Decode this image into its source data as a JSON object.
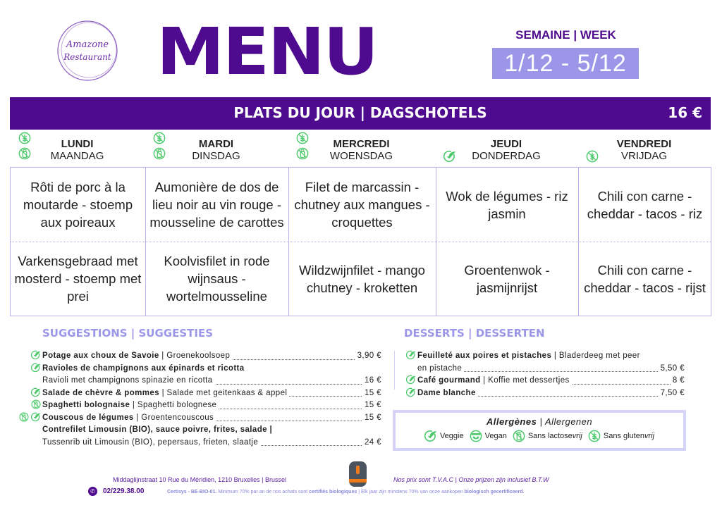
{
  "logo": {
    "text": "Amazone Restaurant"
  },
  "title": "MENU",
  "week": {
    "label": "SEMAINE | WEEK",
    "range": "1/12  -  5/12"
  },
  "plats": {
    "title": "PLATS DU JOUR | DAGSCHOTELS",
    "price": "16 €"
  },
  "colors": {
    "primary": "#4f0b8f",
    "accent": "#9b96e8",
    "icon_green": "#4cc96a"
  },
  "days": [
    {
      "fr": "LUNDI",
      "nl": "MAANDAG",
      "icons": [
        "gluten-free-icon",
        "lactose-free-icon"
      ],
      "dish_fr": "Rôti de porc à la moutarde - stoemp aux poireaux",
      "dish_nl": "Varkensgebraad met mosterd - stoemp met prei"
    },
    {
      "fr": "MARDI",
      "nl": "DINSDAG",
      "icons": [
        "gluten-free-icon",
        "lactose-free-icon"
      ],
      "dish_fr": "Aumonière de dos de lieu noir au vin rouge - mousseline de carottes",
      "dish_nl": "Koolvisfilet in rode wijnsaus - wortelmousseline"
    },
    {
      "fr": "MERCREDI",
      "nl": "WOENSDAG",
      "icons": [
        "gluten-free-icon",
        "lactose-free-icon"
      ],
      "dish_fr": "Filet de marcassin - chutney aux mangues - croquettes",
      "dish_nl": "Wildzwijnfilet - mango chutney - kroketten"
    },
    {
      "fr": "JEUDI",
      "nl": "DONDERDAG",
      "icons": [
        "veggie-icon"
      ],
      "dish_fr": "Wok de légumes - riz jasmin",
      "dish_nl": "Groentenwok - jasmijnrijst"
    },
    {
      "fr": "VENDREDI",
      "nl": "VRIJDAG",
      "icons": [
        "gluten-free-icon"
      ],
      "dish_fr": "Chili con carne - cheddar - tacos - riz",
      "dish_nl": "Chili con carne - cheddar - tacos - rijst"
    }
  ],
  "suggestions": {
    "title": "SUGGESTIONS | SUGGESTIES",
    "rows": [
      {
        "icons": [
          "veggie-icon"
        ],
        "bold": "Potage aux choux de Savoie",
        "text": " | Groenekoolsoep",
        "price": "3,90 €"
      },
      {
        "icons": [
          "veggie-icon"
        ],
        "bold": "Ravioles de champignons aux épinards et ricotta",
        "text": "",
        "price": ""
      },
      {
        "icons": [],
        "bold": "",
        "text": "Ravioli met champignons spinazie en ricotta",
        "price": "16 €"
      },
      {
        "icons": [
          "veggie-icon"
        ],
        "bold": "Salade de chèvre & pommes",
        "text": " | Salade met geitenkaas & appel",
        "price": "15 €"
      },
      {
        "icons": [
          "lactose-free-icon"
        ],
        "bold": "Spaghetti bolognaise",
        "text": " | Spaghetti bolognese",
        "price": "15 €"
      },
      {
        "icons": [
          "lactose-free-icon",
          "veggie-icon"
        ],
        "bold": "Couscous de légumes",
        "text": " | Groentencouscous",
        "price": "15 €"
      },
      {
        "icons": [],
        "bold": "Contrefilet Limousin (BIO), sauce poivre, frites, salade |",
        "text": "",
        "price": ""
      },
      {
        "icons": [],
        "bold": "",
        "text": "Tussenrib uit Limousin (BIO), pepersaus, frieten, slaatje",
        "price": "24 €"
      }
    ]
  },
  "desserts": {
    "title": "DESSERTS | DESSERTEN",
    "rows": [
      {
        "icons": [
          "veggie-icon"
        ],
        "bold": "Feuilleté aux poires et pistaches",
        "text": " | Bladerdeeg met peer",
        "price": ""
      },
      {
        "icons": [],
        "bold": "",
        "text": "en pistache",
        "price": "5,50 €"
      },
      {
        "icons": [
          "veggie-icon"
        ],
        "bold": "Café gourmand",
        "text": " | Koffie met dessertjes",
        "price": "8 €"
      },
      {
        "icons": [
          "veggie-icon"
        ],
        "bold": "Dame blanche",
        "text": "",
        "price": "7,50 €"
      }
    ]
  },
  "legend": {
    "title_fr": "Allergènes",
    "title_nl": " | Allergenen",
    "items": [
      {
        "icon": "veggie-icon",
        "label": "Veggie",
        "label_it": ""
      },
      {
        "icon": "vegan-icon",
        "label": "Vegan",
        "label_it": ""
      },
      {
        "icon": "lactose-free-icon",
        "label": "Sans lactose",
        "label_it": "vrij"
      },
      {
        "icon": "gluten-free-icon",
        "label": "Sans gluten",
        "label_it": "vrij"
      }
    ]
  },
  "footer": {
    "address": "Middaglijnstraat 10 Rue du Méridien, 1210 Bruxelles |  Brussel",
    "phone": "02/229.38.00",
    "badge": "GoodFood RESTO",
    "vat": "Nos prix sont T.V.A.C  |  Onze prijzen zijn inclusief B.T.W",
    "cert_a": "Certisys - BE-BIO-01.",
    "cert_b": "Minimum 70% par an de nos achats sont ",
    "cert_c": "certifiés biologiques",
    "cert_d": "  |  Elk jaar zijn minstens 70% van onze aankopen ",
    "cert_e": "biologisch gecertificeerd."
  }
}
